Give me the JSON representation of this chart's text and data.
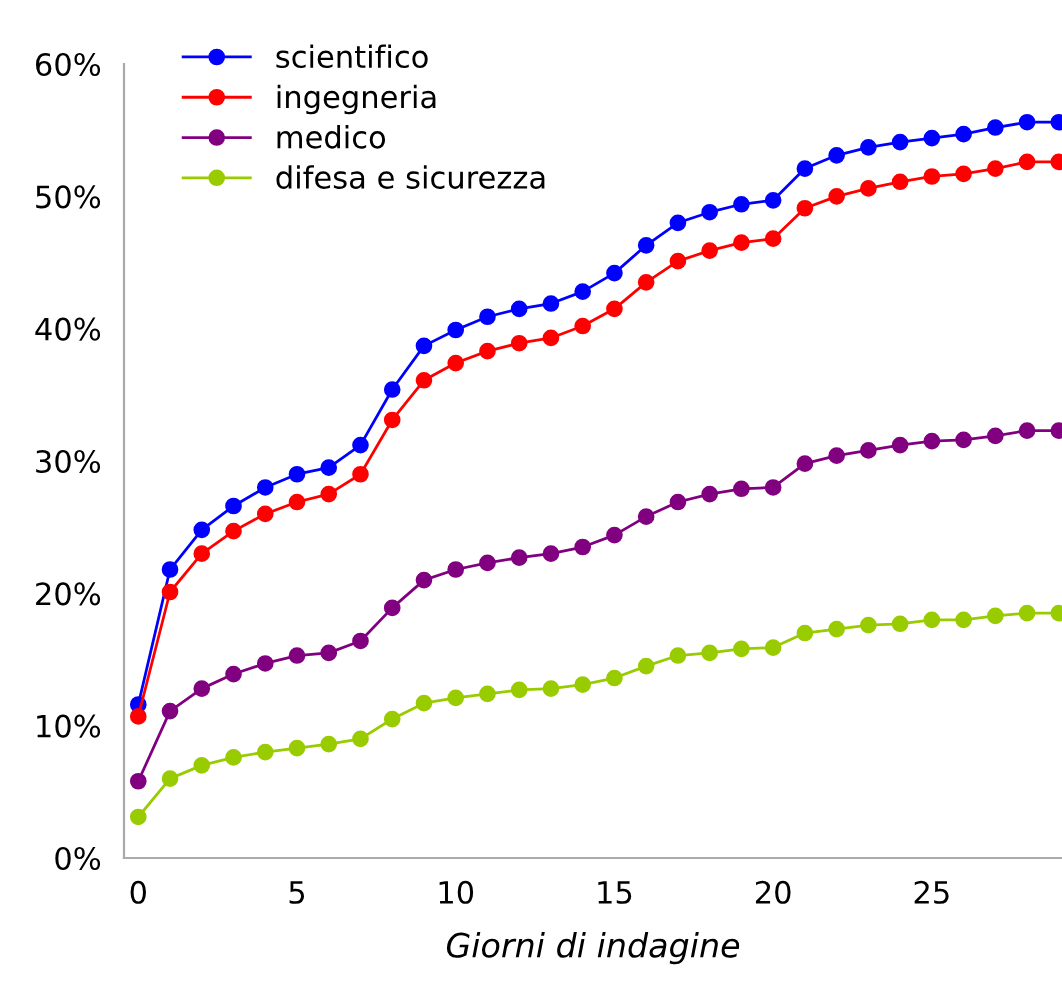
{
  "chart_data": {
    "type": "line",
    "xlabel": "Giorni di indagine",
    "x": [
      0,
      1,
      2,
      3,
      4,
      5,
      6,
      7,
      8,
      9,
      10,
      11,
      12,
      13,
      14,
      15,
      16,
      17,
      18,
      19,
      20,
      21,
      22,
      23,
      24,
      25,
      26,
      27,
      28,
      29
    ],
    "series": [
      {
        "name": "scientifico",
        "color": "#0000ff",
        "values": [
          11.6,
          21.8,
          24.8,
          26.6,
          28.0,
          29.0,
          29.5,
          31.2,
          35.4,
          38.7,
          39.9,
          40.9,
          41.5,
          41.9,
          42.8,
          44.2,
          46.3,
          48.0,
          48.8,
          49.4,
          49.7,
          52.1,
          53.1,
          53.7,
          54.1,
          54.4,
          54.7,
          55.2,
          55.6,
          55.6
        ]
      },
      {
        "name": "ingegneria",
        "color": "#ff0000",
        "values": [
          10.7,
          20.1,
          23.0,
          24.7,
          26.0,
          26.9,
          27.5,
          29.0,
          33.1,
          36.1,
          37.4,
          38.3,
          38.9,
          39.3,
          40.2,
          41.5,
          43.5,
          45.1,
          45.9,
          46.5,
          46.8,
          49.1,
          50.0,
          50.6,
          51.1,
          51.5,
          51.7,
          52.1,
          52.6,
          52.6
        ]
      },
      {
        "name": "medico",
        "color": "#800080",
        "values": [
          5.8,
          11.1,
          12.8,
          13.9,
          14.7,
          15.3,
          15.5,
          16.4,
          18.9,
          21.0,
          21.8,
          22.3,
          22.7,
          23.0,
          23.5,
          24.4,
          25.8,
          26.9,
          27.5,
          27.9,
          28.0,
          29.8,
          30.4,
          30.8,
          31.2,
          31.5,
          31.6,
          31.9,
          32.3,
          32.3
        ]
      },
      {
        "name": "difesa e sicurezza",
        "color": "#99cc00",
        "values": [
          3.1,
          6.0,
          7.0,
          7.6,
          8.0,
          8.3,
          8.6,
          9.0,
          10.5,
          11.7,
          12.1,
          12.4,
          12.7,
          12.8,
          13.1,
          13.6,
          14.5,
          15.3,
          15.5,
          15.8,
          15.9,
          17.0,
          17.3,
          17.6,
          17.7,
          18.0,
          18.0,
          18.3,
          18.5,
          18.5
        ]
      }
    ],
    "xlim": [
      -0.45,
      29.1
    ],
    "xticks": [
      0,
      5,
      10,
      15,
      20,
      25
    ],
    "ylim": [
      0,
      60
    ],
    "yticks": [
      {
        "value": 0,
        "label": "0%"
      },
      {
        "value": 10,
        "label": "10%"
      },
      {
        "value": 20,
        "label": "20%"
      },
      {
        "value": 30,
        "label": "30%"
      },
      {
        "value": 40,
        "label": "40%"
      },
      {
        "value": 50,
        "label": "50%"
      },
      {
        "value": 60,
        "label": "60%"
      }
    ],
    "marker": "circle",
    "line_style": "solid",
    "grid": false,
    "legend": "top left"
  }
}
